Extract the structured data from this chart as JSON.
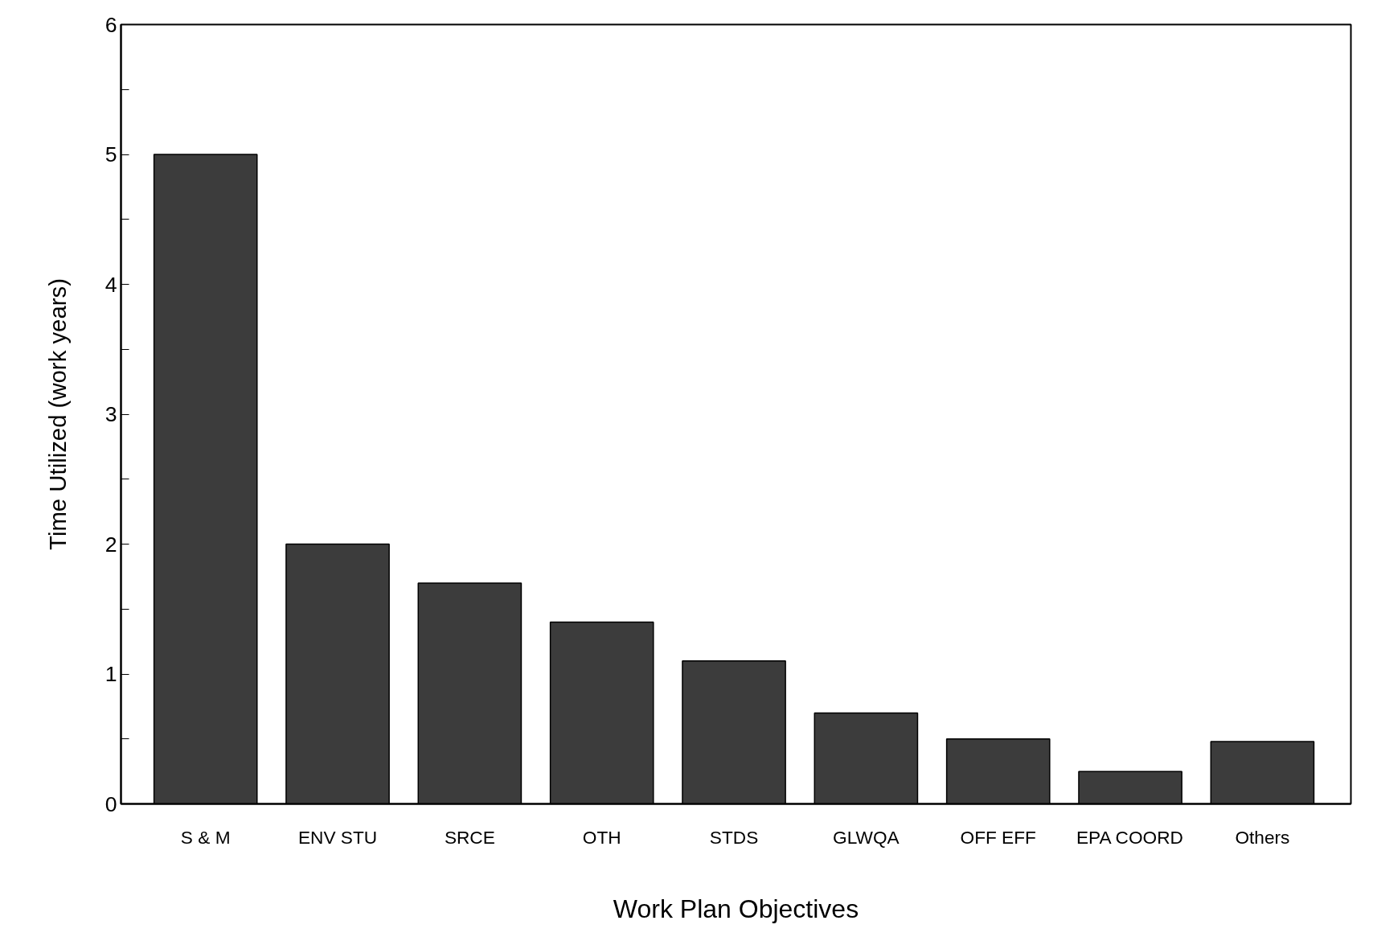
{
  "chart_data": {
    "type": "bar",
    "xlabel": "Work Plan Objectives",
    "ylabel": "Time Utilized (work years)",
    "categories": [
      "S & M",
      "ENV STU",
      "SRCE",
      "OTH",
      "STDS",
      "GLWQA",
      "OFF EFF",
      "EPA COORD",
      "Others"
    ],
    "values": [
      5.0,
      2.0,
      1.7,
      1.4,
      1.1,
      0.7,
      0.5,
      0.25,
      0.48
    ],
    "color": "#3c3c3c",
    "ylim": [
      0,
      6
    ],
    "yticks": [
      0,
      {
        "value": 0.5,
        "label": null
      },
      1,
      {
        "value": 1.5,
        "label": null
      },
      2,
      {
        "value": 2.5,
        "label": null
      },
      3,
      {
        "value": 3.5,
        "label": null
      },
      4,
      {
        "value": 4.5,
        "label": null
      },
      5,
      {
        "value": 5.5,
        "label": null
      },
      6
    ],
    "grid": false
  }
}
